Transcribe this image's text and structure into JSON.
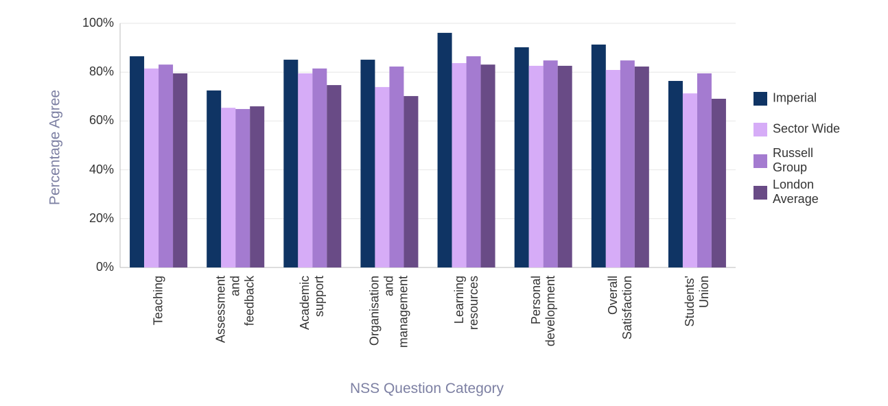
{
  "chart_data": {
    "type": "bar",
    "y_label": "Percentage Agree",
    "x_label": "NSS Question Category",
    "categories": [
      "Teaching",
      "Assessment\nand\nfeedback",
      "Academic\nsupport",
      "Organisation\nand\nmanagement",
      "Learning\nresources",
      "Personal\ndevelopment",
      "Overall\nSatisfaction",
      "Students'\nUnion"
    ],
    "series": [
      {
        "name": "Imperial",
        "color": "#0f3464",
        "values": [
          86.5,
          72.5,
          85.1,
          85.1,
          96.1,
          90.2,
          91.3,
          76.4
        ]
      },
      {
        "name": "Sector Wide",
        "color": "#d6acf7",
        "values": [
          81.5,
          65.4,
          79.5,
          73.9,
          83.7,
          82.6,
          80.9,
          71.3
        ]
      },
      {
        "name": "Russell\nGroup",
        "color": "#a47bd0",
        "values": [
          83.1,
          64.9,
          81.5,
          82.3,
          86.5,
          84.8,
          84.8,
          79.5
        ]
      },
      {
        "name": "London\nAverage",
        "color": "#694b86",
        "values": [
          79.5,
          66.0,
          74.7,
          70.2,
          83.1,
          82.6,
          82.3,
          69.1
        ]
      }
    ],
    "ylim": [
      0,
      100
    ],
    "yticks": [
      {
        "value": 0,
        "label": "0%"
      },
      {
        "value": 20,
        "label": "20%"
      },
      {
        "value": 40,
        "label": "40%"
      },
      {
        "value": 60,
        "label": "60%"
      },
      {
        "value": 80,
        "label": "80%"
      },
      {
        "value": 100,
        "label": "100%"
      }
    ],
    "grid": true,
    "legend": "right"
  }
}
